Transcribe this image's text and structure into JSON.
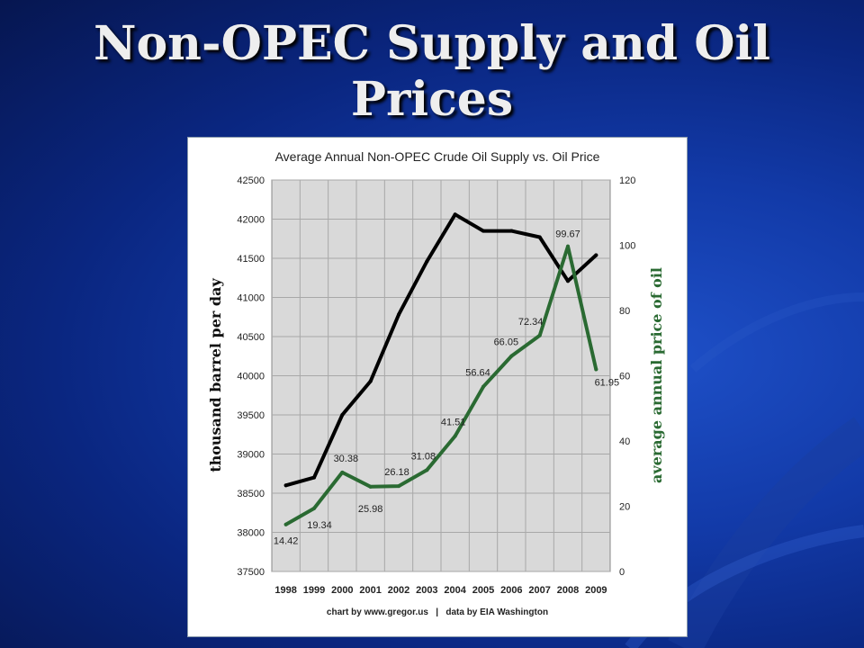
{
  "slide": {
    "title_line1": "Non-OPEC Supply and Oil",
    "title_line2": "Prices"
  },
  "colors": {
    "supply_line": "#000000",
    "price_line": "#2a6a32",
    "plot_bg": "#d9d9d9",
    "grid": "#a8a8a8"
  },
  "chart_data": {
    "type": "line",
    "title": "Average Annual Non-OPEC Crude Oil Supply vs. Oil Price",
    "footer": "chart by www.gregor.us   |   data by EIA Washington",
    "x": [
      "1998",
      "1999",
      "2000",
      "2001",
      "2002",
      "2003",
      "2004",
      "2005",
      "2006",
      "2007",
      "2008",
      "2009"
    ],
    "y_left": {
      "label": "thousand barrel per day",
      "ylim": [
        37500,
        42500
      ],
      "ticks": [
        "42500",
        "42000",
        "41500",
        "41000",
        "40500",
        "40000",
        "39500",
        "39000",
        "38500",
        "38000",
        "37500"
      ]
    },
    "y_right": {
      "label": "average annual price of oil",
      "ylim": [
        0,
        120
      ],
      "ticks": [
        "120",
        "100",
        "80",
        "60",
        "40",
        "20",
        "0"
      ]
    },
    "grid": true,
    "series": [
      {
        "axis": "left",
        "values": [
          38600,
          38700,
          39500,
          39930,
          40780,
          41460,
          42060,
          41850,
          41850,
          41770,
          41210,
          41540
        ]
      },
      {
        "axis": "right",
        "values": [
          14.42,
          19.34,
          30.38,
          25.98,
          26.18,
          31.08,
          41.51,
          56.64,
          66.05,
          72.34,
          99.67,
          61.95
        ],
        "data_labels": [
          "14.42",
          "19.34",
          "30.38",
          "25.98",
          "26.18",
          "31.08",
          "41.51",
          "56.64",
          "66.05",
          "72.34",
          "99.67",
          "61.95"
        ]
      }
    ]
  }
}
